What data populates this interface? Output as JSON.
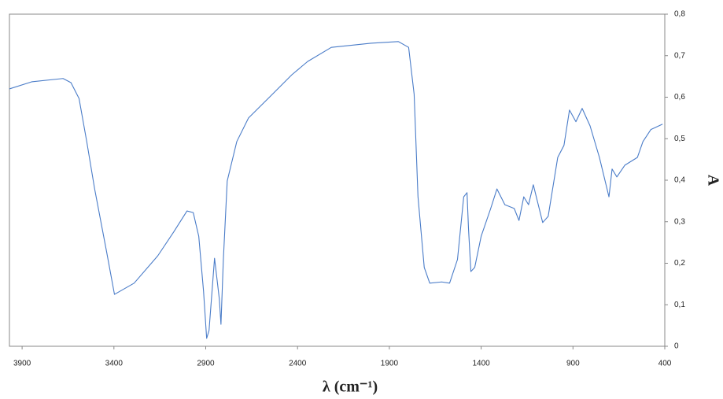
{
  "chart_data": {
    "type": "line",
    "x_label": "λ (cm⁻¹)",
    "y_label": "A",
    "x": [
      3969,
      3848,
      3677,
      3634,
      3590,
      3548,
      3505,
      3440,
      3397,
      3290,
      3161,
      3075,
      3002,
      2968,
      2938,
      2912,
      2895,
      2882,
      2852,
      2826,
      2817,
      2804,
      2783,
      2731,
      2667,
      2560,
      2431,
      2345,
      2216,
      2001,
      1851,
      1795,
      1765,
      1744,
      1710,
      1680,
      1615,
      1572,
      1529,
      1495,
      1477,
      1469,
      1456,
      1435,
      1400,
      1348,
      1314,
      1271,
      1220,
      1194,
      1168,
      1142,
      1116,
      1065,
      1035,
      983,
      949,
      919,
      884,
      850,
      807,
      756,
      704,
      687,
      661,
      618,
      549,
      519,
      476,
      412
    ],
    "values": [
      0.62,
      0.637,
      0.645,
      0.635,
      0.597,
      0.493,
      0.379,
      0.228,
      0.125,
      0.152,
      0.218,
      0.275,
      0.326,
      0.322,
      0.265,
      0.133,
      0.019,
      0.038,
      0.212,
      0.114,
      0.053,
      0.209,
      0.398,
      0.493,
      0.55,
      0.597,
      0.654,
      0.686,
      0.72,
      0.73,
      0.734,
      0.72,
      0.607,
      0.36,
      0.19,
      0.152,
      0.155,
      0.152,
      0.209,
      0.36,
      0.37,
      0.284,
      0.18,
      0.19,
      0.265,
      0.332,
      0.379,
      0.341,
      0.332,
      0.303,
      0.36,
      0.341,
      0.389,
      0.298,
      0.313,
      0.455,
      0.484,
      0.569,
      0.541,
      0.573,
      0.531,
      0.455,
      0.36,
      0.427,
      0.408,
      0.436,
      0.455,
      0.493,
      0.522,
      0.535
    ],
    "color": "#4a7cc8",
    "xlim": [
      3969,
      400
    ],
    "xticks": [
      3900,
      3400,
      2900,
      2400,
      1900,
      1400,
      900,
      400
    ],
    "ylim": [
      0,
      0.8
    ],
    "yticks": [
      0,
      {
        "value": 0.1,
        "label": "0,1"
      },
      {
        "value": 0.2,
        "label": "0,2"
      },
      {
        "value": 0.3,
        "label": "0,3"
      },
      {
        "value": 0.4,
        "label": "0,4"
      },
      {
        "value": 0.5,
        "label": "0,5"
      },
      {
        "value": 0.6,
        "label": "0,6"
      },
      {
        "value": 0.7,
        "label": "0,7"
      },
      {
        "value": 0.8,
        "label": "0,8"
      }
    ],
    "grid": false
  }
}
